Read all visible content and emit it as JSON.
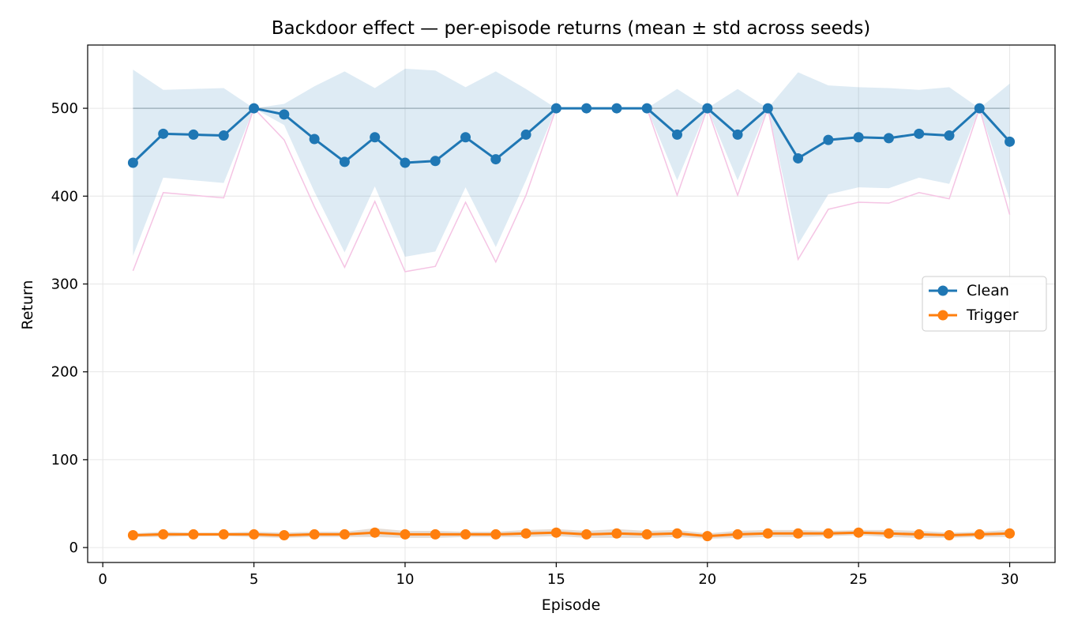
{
  "chart_data": {
    "type": "line",
    "title": "Backdoor effect — per-episode returns (mean ± std across seeds)",
    "xlabel": "Episode",
    "ylabel": "Return",
    "xlim": [
      -0.5,
      31.5
    ],
    "ylim": [
      -17,
      572
    ],
    "xticks": [
      0,
      5,
      10,
      15,
      20,
      25,
      30
    ],
    "yticks": [
      0,
      100,
      200,
      300,
      400,
      500
    ],
    "grid": true,
    "legend_position": "center-right",
    "reference_line": 500,
    "x": [
      1,
      2,
      3,
      4,
      5,
      6,
      7,
      8,
      9,
      10,
      11,
      12,
      13,
      14,
      15,
      16,
      17,
      18,
      19,
      20,
      21,
      22,
      23,
      24,
      25,
      26,
      27,
      28,
      29,
      30
    ],
    "series": [
      {
        "name": "Clean",
        "color": "#1f77b4",
        "values": [
          438,
          471,
          470,
          469,
          500,
          493,
          465,
          439,
          467,
          438,
          440,
          467,
          442,
          470,
          500,
          500,
          500,
          500,
          470,
          500,
          470,
          500,
          443,
          464,
          467,
          466,
          471,
          469,
          500,
          462
        ],
        "std": [
          106,
          50,
          52,
          54,
          0,
          12,
          60,
          103,
          56,
          107,
          103,
          57,
          100,
          52,
          0,
          0,
          0,
          0,
          52,
          0,
          52,
          0,
          98,
          62,
          57,
          57,
          50,
          55,
          0,
          66
        ]
      },
      {
        "name": "Trigger",
        "color": "#ff7f0e",
        "values": [
          14,
          15,
          15,
          15,
          15,
          14,
          15,
          15,
          17,
          15,
          15,
          15,
          15,
          16,
          17,
          15,
          16,
          15,
          16,
          13,
          15,
          16,
          16,
          16,
          17,
          16,
          15,
          14,
          15,
          16
        ],
        "std": [
          2,
          3,
          2,
          2,
          3,
          3,
          3,
          3,
          5,
          4,
          4,
          3,
          3,
          4,
          4,
          4,
          5,
          4,
          4,
          3,
          4,
          4,
          4,
          3,
          3,
          4,
          4,
          3,
          3,
          4
        ]
      }
    ]
  },
  "colors": {
    "band": "#1f77b4",
    "reference": "#a3b5bf",
    "min_line": "#f5c4e4",
    "trigger_band": "#d4c4b8"
  }
}
